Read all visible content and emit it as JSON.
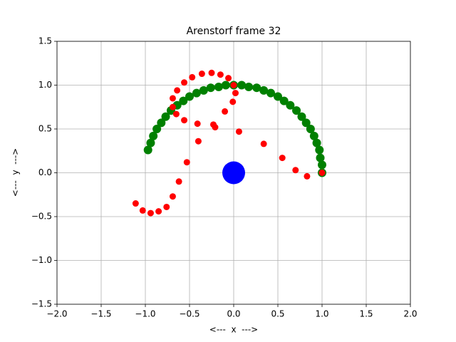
{
  "chart_data": {
    "type": "scatter",
    "title": "Arenstorf frame 32",
    "xlabel": "<---  x  --->",
    "ylabel": "<---  y  --->",
    "xlim": [
      -2,
      2
    ],
    "ylim": [
      -1.5,
      1.5
    ],
    "xticks": [
      {
        "value": -2,
        "label": "−2.0"
      },
      {
        "value": -1.5,
        "label": "−1.5"
      },
      {
        "value": -1,
        "label": "−1.0"
      },
      {
        "value": -0.5,
        "label": "−0.5"
      },
      {
        "value": 0,
        "label": "0.0"
      },
      0.5,
      {
        "value": 1,
        "label": "1.0"
      },
      1.5,
      {
        "value": 2,
        "label": "2.0"
      }
    ],
    "yticks": [
      {
        "value": -1.5,
        "label": "−1.5"
      },
      {
        "value": -1,
        "label": "−1.0"
      },
      {
        "value": -0.5,
        "label": "−0.5"
      },
      {
        "value": 0,
        "label": "0.0"
      },
      0.5,
      {
        "value": 1,
        "label": "1.0"
      },
      1.5
    ],
    "grid": true,
    "series": [
      {
        "color": "#008000",
        "x": [
          1.0,
          1.0,
          0.98,
          0.97,
          0.94,
          0.91,
          0.87,
          0.82,
          0.77,
          0.71,
          0.64,
          0.57,
          0.5,
          0.42,
          0.34,
          0.26,
          0.17,
          0.09,
          0.0,
          -0.09,
          -0.17,
          -0.26,
          -0.34,
          -0.42,
          -0.5,
          -0.57,
          -0.64,
          -0.71,
          -0.77,
          -0.82,
          -0.87,
          -0.91,
          -0.94,
          -0.97
        ],
        "values": [
          0.0,
          0.09,
          0.17,
          0.26,
          0.34,
          0.42,
          0.5,
          0.57,
          0.64,
          0.71,
          0.77,
          0.82,
          0.87,
          0.91,
          0.94,
          0.97,
          0.98,
          1.0,
          1.0,
          1.0,
          0.98,
          0.97,
          0.94,
          0.91,
          0.87,
          0.82,
          0.77,
          0.71,
          0.64,
          0.57,
          0.5,
          0.42,
          0.34,
          0.26
        ]
      },
      {
        "color": "#ff0000",
        "x": [
          1.0,
          0.83,
          0.7,
          0.55,
          0.34,
          0.06,
          -0.21,
          -0.23,
          -0.1,
          -0.01,
          0.02,
          0.0,
          -0.06,
          -0.15,
          -0.25,
          -0.36,
          -0.47,
          -0.56,
          -0.64,
          -0.69,
          -0.69,
          -0.65,
          -0.56,
          -0.41,
          -0.4,
          -0.53,
          -0.62,
          -0.69,
          -0.76,
          -0.85,
          -0.94,
          -1.03,
          -1.11
        ],
        "values": [
          0.0,
          -0.04,
          0.03,
          0.17,
          0.33,
          0.47,
          0.52,
          0.55,
          0.7,
          0.81,
          0.91,
          1.0,
          1.08,
          1.12,
          1.14,
          1.13,
          1.09,
          1.03,
          0.94,
          0.85,
          0.75,
          0.67,
          0.6,
          0.56,
          0.36,
          0.12,
          -0.1,
          -0.27,
          -0.39,
          -0.44,
          -0.46,
          -0.43,
          -0.35
        ]
      },
      {
        "color": "#0000ff",
        "x": [
          0
        ],
        "values": [
          0
        ]
      }
    ]
  }
}
